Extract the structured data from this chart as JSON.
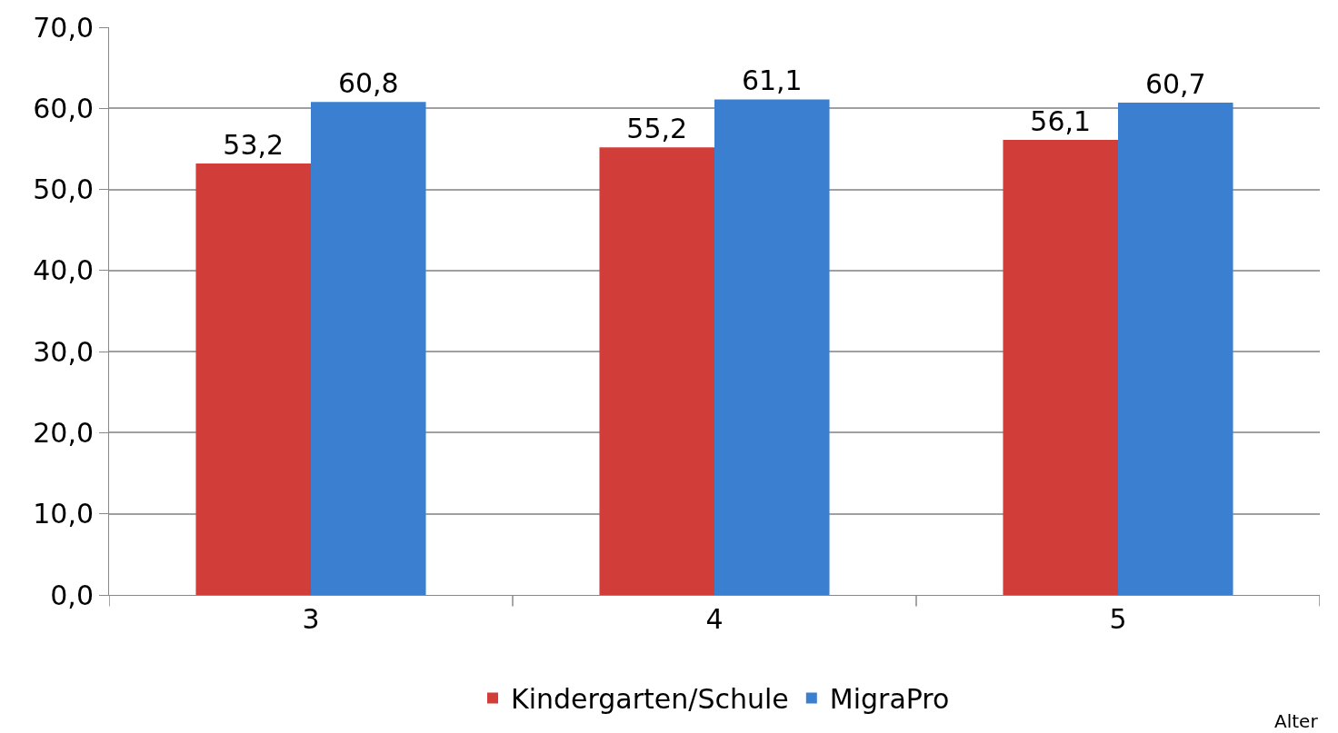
{
  "chart_data": {
    "type": "bar",
    "xlabel": "Alter",
    "categories": [
      "3",
      "4",
      "5"
    ],
    "series": [
      {
        "name": "Kindergarten/Schule",
        "color": "#d13d38",
        "values": [
          53.2,
          55.2,
          56.1
        ],
        "value_labels": [
          "53,2",
          "55,2",
          "56,1"
        ]
      },
      {
        "name": "MigraPro",
        "color": "#3a7fd0",
        "values": [
          60.8,
          61.1,
          60.7
        ],
        "value_labels": [
          "60,8",
          "61,1",
          "60,7"
        ]
      }
    ],
    "ylim": [
      0,
      70
    ],
    "yticks": [
      {
        "value": 0,
        "label": "0,0"
      },
      {
        "value": 10,
        "label": "10,0"
      },
      {
        "value": 20,
        "label": "20,0"
      },
      {
        "value": 30,
        "label": "30,0"
      },
      {
        "value": 40,
        "label": "40,0"
      },
      {
        "value": 50,
        "label": "50,0"
      },
      {
        "value": 60,
        "label": "60,0"
      },
      {
        "value": 70,
        "label": "70,0"
      }
    ],
    "grid": "y",
    "legend": "bottom"
  }
}
